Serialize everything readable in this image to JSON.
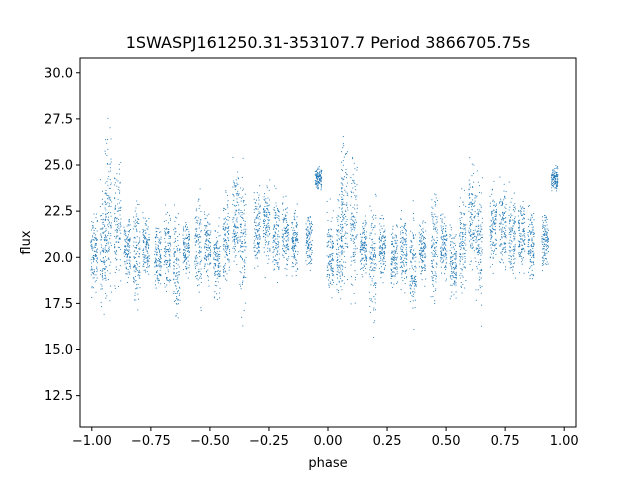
{
  "chart_data": {
    "type": "scatter",
    "title": "1SWASPJ161250.31-353107.7 Period 3866705.75s",
    "xlabel": "phase",
    "ylabel": "flux",
    "xlim": [
      -1.05,
      1.05
    ],
    "ylim": [
      10.8,
      30.8
    ],
    "xticks": [
      -1.0,
      -0.75,
      -0.5,
      -0.25,
      0.0,
      0.25,
      0.5,
      0.75,
      1.0
    ],
    "xtick_labels": [
      "−1.00",
      "−0.75",
      "−0.50",
      "−0.25",
      "0.00",
      "0.25",
      "0.50",
      "0.75",
      "1.00"
    ],
    "yticks": [
      12.5,
      15.0,
      17.5,
      20.0,
      22.5,
      25.0,
      27.5,
      30.0
    ],
    "ytick_labels": [
      "12.5",
      "15.0",
      "17.5",
      "20.0",
      "22.5",
      "25.0",
      "27.5",
      "30.0"
    ],
    "grid": false,
    "marker_color": "#1f77b4",
    "series": [
      {
        "clusters": [
          {
            "x": -0.99,
            "y_range": [
              17.5,
              23.0
            ]
          },
          {
            "x": -0.95,
            "y_range": [
              17.0,
              24.0
            ]
          },
          {
            "x": -0.93,
            "y_range": [
              17.5,
              27.5
            ]
          },
          {
            "x": -0.89,
            "y_range": [
              17.5,
              26.0
            ]
          },
          {
            "x": -0.85,
            "y_range": [
              18.5,
              22.5
            ]
          },
          {
            "x": -0.81,
            "y_range": [
              16.0,
              23.5
            ]
          },
          {
            "x": -0.77,
            "y_range": [
              18.5,
              22.5
            ]
          },
          {
            "x": -0.72,
            "y_range": [
              18.0,
              22.0
            ]
          },
          {
            "x": -0.68,
            "y_range": [
              18.0,
              23.0
            ]
          },
          {
            "x": -0.64,
            "y_range": [
              16.0,
              23.0
            ]
          },
          {
            "x": -0.6,
            "y_range": [
              18.5,
              22.5
            ]
          },
          {
            "x": -0.55,
            "y_range": [
              17.0,
              24.0
            ]
          },
          {
            "x": -0.51,
            "y_range": [
              18.5,
              23.0
            ]
          },
          {
            "x": -0.47,
            "y_range": [
              17.5,
              22.0
            ]
          },
          {
            "x": -0.43,
            "y_range": [
              18.0,
              24.0
            ]
          },
          {
            "x": -0.39,
            "y_range": [
              19.0,
              25.5
            ]
          },
          {
            "x": -0.36,
            "y_range": [
              16.5,
              25.0
            ]
          },
          {
            "x": -0.3,
            "y_range": [
              19.0,
              24.0
            ]
          },
          {
            "x": -0.26,
            "y_range": [
              19.0,
              24.5
            ]
          },
          {
            "x": -0.22,
            "y_range": [
              18.5,
              24.0
            ]
          },
          {
            "x": -0.18,
            "y_range": [
              19.0,
              23.5
            ]
          },
          {
            "x": -0.14,
            "y_range": [
              18.5,
              23.0
            ]
          },
          {
            "x": -0.08,
            "y_range": [
              19.0,
              23.0
            ]
          },
          {
            "x": -0.04,
            "y_range": [
              23.5,
              25.0
            ]
          },
          {
            "x": 0.01,
            "y_range": [
              17.5,
              23.0
            ]
          },
          {
            "x": 0.05,
            "y_range": [
              17.0,
              24.0
            ]
          },
          {
            "x": 0.07,
            "y_range": [
              17.5,
              27.5
            ]
          },
          {
            "x": 0.11,
            "y_range": [
              17.5,
              26.0
            ]
          },
          {
            "x": 0.15,
            "y_range": [
              18.5,
              22.5
            ]
          },
          {
            "x": 0.19,
            "y_range": [
              16.0,
              23.5
            ]
          },
          {
            "x": 0.23,
            "y_range": [
              18.5,
              22.5
            ]
          },
          {
            "x": 0.28,
            "y_range": [
              18.0,
              22.0
            ]
          },
          {
            "x": 0.32,
            "y_range": [
              18.0,
              23.0
            ]
          },
          {
            "x": 0.36,
            "y_range": [
              16.0,
              23.0
            ]
          },
          {
            "x": 0.4,
            "y_range": [
              18.5,
              22.5
            ]
          },
          {
            "x": 0.45,
            "y_range": [
              17.0,
              24.0
            ]
          },
          {
            "x": 0.49,
            "y_range": [
              18.5,
              23.0
            ]
          },
          {
            "x": 0.53,
            "y_range": [
              17.5,
              22.0
            ]
          },
          {
            "x": 0.57,
            "y_range": [
              18.0,
              24.0
            ]
          },
          {
            "x": 0.61,
            "y_range": [
              19.0,
              25.5
            ]
          },
          {
            "x": 0.64,
            "y_range": [
              16.5,
              25.0
            ]
          },
          {
            "x": 0.7,
            "y_range": [
              19.0,
              24.0
            ]
          },
          {
            "x": 0.74,
            "y_range": [
              19.0,
              24.5
            ]
          },
          {
            "x": 0.78,
            "y_range": [
              18.5,
              24.0
            ]
          },
          {
            "x": 0.82,
            "y_range": [
              19.0,
              23.5
            ]
          },
          {
            "x": 0.86,
            "y_range": [
              18.5,
              23.0
            ]
          },
          {
            "x": 0.92,
            "y_range": [
              19.0,
              23.0
            ]
          },
          {
            "x": 0.96,
            "y_range": [
              23.5,
              25.0
            ]
          }
        ],
        "points_per_cluster": 110
      }
    ]
  }
}
